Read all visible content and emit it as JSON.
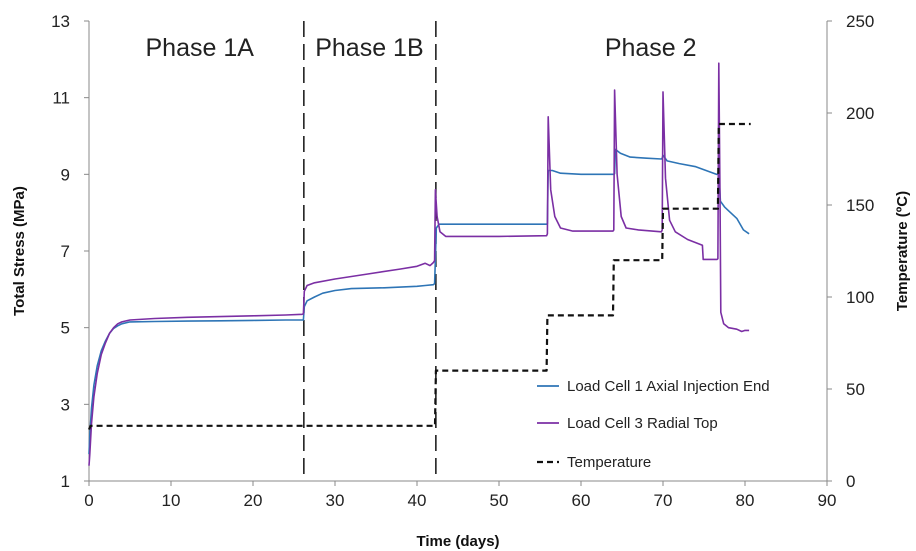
{
  "chart_data": {
    "type": "line",
    "xlabel": "Time (days)",
    "ylabel": "Total Stress (MPa)",
    "y2label": "Temperature (ºC)",
    "xlim": [
      0,
      90
    ],
    "ylim": [
      1,
      13
    ],
    "y2lim": [
      0,
      250
    ],
    "x_ticks": [
      0,
      10,
      20,
      30,
      40,
      50,
      60,
      70,
      80,
      90
    ],
    "y_ticks": [
      1,
      3,
      5,
      7,
      9,
      11,
      13
    ],
    "y2_ticks": [
      0,
      50,
      100,
      150,
      200,
      250
    ],
    "grid": false,
    "legend_position": "bottom-right",
    "phase_boundaries": [
      26.2,
      42.3
    ],
    "annotations": [
      {
        "text": "Phase 1A",
        "x": 13.5
      },
      {
        "text": "Phase 1B",
        "x": 34.2
      },
      {
        "text": "Phase 2",
        "x": 68.5
      }
    ],
    "series": [
      {
        "name": "Load Cell 1 Axial Injection End",
        "axis": "left",
        "color": "#2e75b6",
        "style": "solid",
        "points": [
          [
            0.0,
            1.7
          ],
          [
            0.1,
            2.2
          ],
          [
            0.3,
            2.9
          ],
          [
            0.6,
            3.5
          ],
          [
            1.0,
            4.0
          ],
          [
            1.5,
            4.4
          ],
          [
            2.0,
            4.65
          ],
          [
            2.5,
            4.85
          ],
          [
            3.0,
            4.98
          ],
          [
            3.5,
            5.05
          ],
          [
            4.0,
            5.1
          ],
          [
            5.0,
            5.15
          ],
          [
            8.0,
            5.16
          ],
          [
            12.0,
            5.17
          ],
          [
            16.0,
            5.18
          ],
          [
            20.0,
            5.19
          ],
          [
            24.0,
            5.2
          ],
          [
            26.0,
            5.2
          ],
          [
            26.15,
            5.2
          ],
          [
            26.25,
            5.55
          ],
          [
            26.6,
            5.7
          ],
          [
            27.5,
            5.8
          ],
          [
            28.5,
            5.9
          ],
          [
            30.0,
            5.97
          ],
          [
            32.0,
            6.02
          ],
          [
            36.0,
            6.04
          ],
          [
            40.0,
            6.08
          ],
          [
            41.0,
            6.1
          ],
          [
            42.0,
            6.12
          ],
          [
            42.15,
            6.15
          ],
          [
            42.25,
            6.8
          ],
          [
            42.35,
            7.6
          ],
          [
            42.7,
            7.7
          ],
          [
            45.0,
            7.7
          ],
          [
            50.0,
            7.7
          ],
          [
            55.8,
            7.7
          ],
          [
            55.9,
            7.72
          ],
          [
            56.0,
            9.1
          ],
          [
            56.5,
            9.1
          ],
          [
            57.5,
            9.03
          ],
          [
            60.0,
            9.0
          ],
          [
            64.0,
            9.0
          ],
          [
            64.1,
            9.02
          ],
          [
            64.2,
            9.65
          ],
          [
            64.8,
            9.55
          ],
          [
            66.0,
            9.45
          ],
          [
            68.0,
            9.42
          ],
          [
            69.8,
            9.4
          ],
          [
            69.9,
            9.42
          ],
          [
            70.0,
            9.5
          ],
          [
            70.5,
            9.35
          ],
          [
            72.0,
            9.28
          ],
          [
            74.0,
            9.2
          ],
          [
            76.5,
            9.0
          ],
          [
            76.8,
            9.0
          ],
          [
            76.9,
            8.7
          ],
          [
            77.0,
            8.3
          ],
          [
            77.5,
            8.15
          ],
          [
            78.0,
            8.05
          ],
          [
            79.0,
            7.85
          ],
          [
            79.8,
            7.55
          ],
          [
            80.5,
            7.45
          ]
        ]
      },
      {
        "name": "Load Cell 3 Radial Top",
        "axis": "left",
        "color": "#7b2fa4",
        "style": "solid",
        "points": [
          [
            0.0,
            1.4
          ],
          [
            0.1,
            1.7
          ],
          [
            0.3,
            2.5
          ],
          [
            0.6,
            3.2
          ],
          [
            1.0,
            3.8
          ],
          [
            1.5,
            4.3
          ],
          [
            2.0,
            4.6
          ],
          [
            2.5,
            4.85
          ],
          [
            3.0,
            5.0
          ],
          [
            3.5,
            5.1
          ],
          [
            4.0,
            5.15
          ],
          [
            5.0,
            5.2
          ],
          [
            8.0,
            5.24
          ],
          [
            12.0,
            5.27
          ],
          [
            16.0,
            5.29
          ],
          [
            20.0,
            5.31
          ],
          [
            24.0,
            5.33
          ],
          [
            26.0,
            5.35
          ],
          [
            26.15,
            5.36
          ],
          [
            26.25,
            5.95
          ],
          [
            26.6,
            6.1
          ],
          [
            27.5,
            6.17
          ],
          [
            30.0,
            6.27
          ],
          [
            34.0,
            6.4
          ],
          [
            38.0,
            6.53
          ],
          [
            40.0,
            6.6
          ],
          [
            41.0,
            6.68
          ],
          [
            41.6,
            6.62
          ],
          [
            42.0,
            6.7
          ],
          [
            42.15,
            6.75
          ],
          [
            42.25,
            8.6
          ],
          [
            42.45,
            7.9
          ],
          [
            42.8,
            7.5
          ],
          [
            43.5,
            7.38
          ],
          [
            46.0,
            7.38
          ],
          [
            50.0,
            7.38
          ],
          [
            55.8,
            7.4
          ],
          [
            55.9,
            7.45
          ],
          [
            56.0,
            10.5
          ],
          [
            56.3,
            8.6
          ],
          [
            56.8,
            7.9
          ],
          [
            57.5,
            7.6
          ],
          [
            59.0,
            7.52
          ],
          [
            62.0,
            7.52
          ],
          [
            63.9,
            7.52
          ],
          [
            64.0,
            7.55
          ],
          [
            64.1,
            11.2
          ],
          [
            64.4,
            9.0
          ],
          [
            64.9,
            7.9
          ],
          [
            65.5,
            7.6
          ],
          [
            67.0,
            7.55
          ],
          [
            69.8,
            7.5
          ],
          [
            69.9,
            7.55
          ],
          [
            70.0,
            11.15
          ],
          [
            70.3,
            8.9
          ],
          [
            70.8,
            7.8
          ],
          [
            71.5,
            7.5
          ],
          [
            73.0,
            7.3
          ],
          [
            74.8,
            7.15
          ],
          [
            74.9,
            6.78
          ],
          [
            75.5,
            6.78
          ],
          [
            76.6,
            6.78
          ],
          [
            76.7,
            6.8
          ],
          [
            76.8,
            11.9
          ],
          [
            76.95,
            8.5
          ],
          [
            77.05,
            5.4
          ],
          [
            77.4,
            5.1
          ],
          [
            78.0,
            5.0
          ],
          [
            79.0,
            4.96
          ],
          [
            79.6,
            4.9
          ],
          [
            80.0,
            4.93
          ],
          [
            80.5,
            4.93
          ]
        ]
      },
      {
        "name": "Temperature",
        "axis": "right",
        "color": "#111111",
        "style": "dashed",
        "points": [
          [
            0.0,
            28
          ],
          [
            0.2,
            30
          ],
          [
            42.2,
            30
          ],
          [
            42.3,
            60
          ],
          [
            55.8,
            60
          ],
          [
            55.9,
            90
          ],
          [
            63.9,
            90
          ],
          [
            64.0,
            120
          ],
          [
            69.9,
            120
          ],
          [
            70.0,
            148
          ],
          [
            76.7,
            148
          ],
          [
            76.8,
            194
          ],
          [
            80.7,
            194
          ]
        ]
      }
    ]
  }
}
